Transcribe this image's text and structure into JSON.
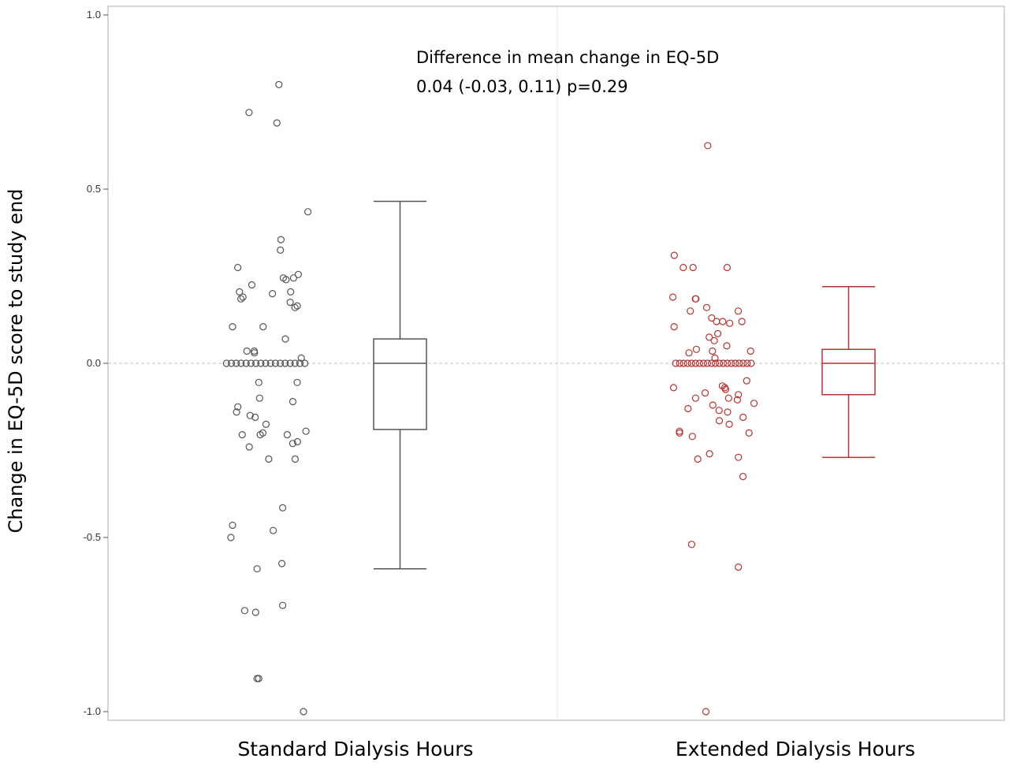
{
  "chart_data": {
    "type": "box_with_jittered_points",
    "title": "",
    "xlabel": "",
    "ylabel": "Change in EQ-5D score to study end",
    "ylim": [
      -1.0,
      1.0
    ],
    "yticks": [
      1.0,
      0.5,
      0.0,
      -0.5,
      -1.0
    ],
    "ytick_labels": [
      "1.0",
      "0.5",
      "0.0",
      "-0.5",
      "-1.0"
    ],
    "reference_line": 0.0,
    "annotation": {
      "line1": "Difference in mean change in EQ-5D",
      "line2": "0.04 (-0.03, 0.11) p=0.29"
    },
    "categories": [
      "Standard Dialysis Hours",
      "Extended Dialysis Hours"
    ],
    "series": [
      {
        "name": "Standard Dialysis Hours",
        "color": "#555555",
        "box": {
          "whisker_low": -0.59,
          "q1": -0.19,
          "median": 0.0,
          "q3": 0.07,
          "whisker_high": 0.465
        },
        "points": [
          0.8,
          0.72,
          0.69,
          0.435,
          0.355,
          0.325,
          0.275,
          0.255,
          0.245,
          0.245,
          0.24,
          0.225,
          0.205,
          0.205,
          0.2,
          0.19,
          0.185,
          0.175,
          0.165,
          0.16,
          0.105,
          0.105,
          0.07,
          0.035,
          0.035,
          0.03,
          0.015,
          0,
          0,
          0,
          0,
          0,
          0,
          0,
          0,
          0,
          0,
          0,
          0,
          0,
          0,
          0,
          0,
          0,
          -0.055,
          -0.055,
          -0.1,
          -0.11,
          -0.125,
          -0.14,
          -0.15,
          -0.155,
          -0.175,
          -0.195,
          -0.2,
          -0.205,
          -0.205,
          -0.205,
          -0.225,
          -0.23,
          -0.24,
          -0.275,
          -0.275,
          -0.415,
          -0.465,
          -0.48,
          -0.5,
          -0.575,
          -0.59,
          -0.695,
          -0.71,
          -0.715,
          -0.905,
          -0.905,
          -1.0
        ]
      },
      {
        "name": "Extended Dialysis Hours",
        "color": "#b53333",
        "box": {
          "whisker_low": -0.27,
          "q1": -0.09,
          "median": 0.0,
          "q3": 0.04,
          "whisker_high": 0.22
        },
        "points": [
          0.625,
          0.31,
          0.275,
          0.275,
          0.275,
          0.19,
          0.185,
          0.185,
          0.16,
          0.15,
          0.15,
          0.13,
          0.12,
          0.12,
          0.12,
          0.115,
          0.105,
          0.085,
          0.075,
          0.065,
          0.05,
          0.04,
          0.035,
          0.035,
          0.03,
          0.015,
          0,
          0,
          0,
          0,
          0,
          0,
          0,
          0,
          0,
          0,
          0,
          0,
          0,
          0,
          0,
          0,
          0,
          0,
          0,
          0,
          -0.05,
          -0.065,
          -0.07,
          -0.07,
          -0.075,
          -0.085,
          -0.09,
          -0.1,
          -0.1,
          -0.105,
          -0.115,
          -0.12,
          -0.13,
          -0.135,
          -0.14,
          -0.155,
          -0.165,
          -0.175,
          -0.195,
          -0.2,
          -0.2,
          -0.21,
          -0.26,
          -0.27,
          -0.275,
          -0.325,
          -0.52,
          -0.585,
          -1.0
        ]
      }
    ]
  }
}
